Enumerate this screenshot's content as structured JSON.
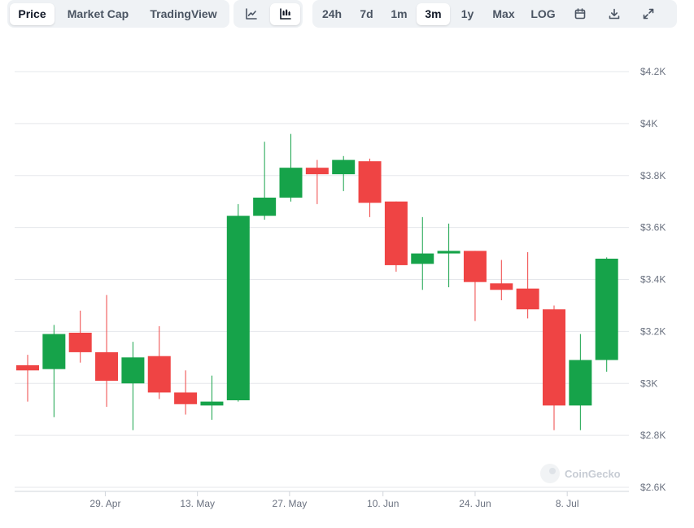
{
  "toolbar": {
    "metric_tabs": [
      {
        "label": "Price",
        "active": true
      },
      {
        "label": "Market Cap",
        "active": false
      },
      {
        "label": "TradingView",
        "active": false
      }
    ],
    "chart_type_buttons": [
      {
        "icon": "line-chart-icon",
        "active": false
      },
      {
        "icon": "candlestick-chart-icon",
        "active": true
      }
    ],
    "ranges": [
      {
        "label": "24h",
        "active": false
      },
      {
        "label": "7d",
        "active": false
      },
      {
        "label": "1m",
        "active": false
      },
      {
        "label": "3m",
        "active": true
      },
      {
        "label": "1y",
        "active": false
      },
      {
        "label": "Max",
        "active": false
      },
      {
        "label": "LOG",
        "active": false
      }
    ],
    "action_icons": [
      "calendar-icon",
      "download-icon",
      "expand-icon"
    ]
  },
  "watermark": "CoinGecko",
  "colors": {
    "up": "#16a34a",
    "down": "#ef4444",
    "grid": "#e5e7eb",
    "active_bg": "#ffffff",
    "group_bg": "#eff2f5"
  },
  "chart_data": {
    "type": "candlestick",
    "y_ticks": [
      {
        "value": 2600,
        "label": "$2.6K"
      },
      {
        "value": 2800,
        "label": "$2.8K"
      },
      {
        "value": 3000,
        "label": "$3K"
      },
      {
        "value": 3200,
        "label": "$3.2K"
      },
      {
        "value": 3400,
        "label": "$3.4K"
      },
      {
        "value": 3600,
        "label": "$3.6K"
      },
      {
        "value": 3800,
        "label": "$3.8K"
      },
      {
        "value": 4000,
        "label": "$4K"
      },
      {
        "value": 4200,
        "label": "$4.2K"
      }
    ],
    "x_ticks": [
      {
        "label": "29. Apr",
        "index": 2.95
      },
      {
        "label": "13. May",
        "index": 6.45
      },
      {
        "label": "27. May",
        "index": 9.95
      },
      {
        "label": "10. Jun",
        "index": 13.5
      },
      {
        "label": "24. Jun",
        "index": 17.0
      },
      {
        "label": "8. Jul",
        "index": 20.5
      }
    ],
    "ylim": [
      2600,
      4200
    ],
    "candles": [
      {
        "open": 3070,
        "high": 3110,
        "low": 2930,
        "close": 3050
      },
      {
        "open": 3055,
        "high": 3225,
        "low": 2870,
        "close": 3190
      },
      {
        "open": 3195,
        "high": 3280,
        "low": 3080,
        "close": 3120
      },
      {
        "open": 3120,
        "high": 3340,
        "low": 2910,
        "close": 3010
      },
      {
        "open": 3000,
        "high": 3160,
        "low": 2820,
        "close": 3100
      },
      {
        "open": 3105,
        "high": 3220,
        "low": 2940,
        "close": 2965
      },
      {
        "open": 2965,
        "high": 3050,
        "low": 2880,
        "close": 2920
      },
      {
        "open": 2915,
        "high": 3030,
        "low": 2860,
        "close": 2930
      },
      {
        "open": 2935,
        "high": 3690,
        "low": 2930,
        "close": 3645
      },
      {
        "open": 3645,
        "high": 3930,
        "low": 3630,
        "close": 3715
      },
      {
        "open": 3715,
        "high": 3960,
        "low": 3700,
        "close": 3830
      },
      {
        "open": 3830,
        "high": 3860,
        "low": 3690,
        "close": 3805
      },
      {
        "open": 3805,
        "high": 3875,
        "low": 3740,
        "close": 3860
      },
      {
        "open": 3855,
        "high": 3865,
        "low": 3640,
        "close": 3695
      },
      {
        "open": 3700,
        "high": 3700,
        "low": 3430,
        "close": 3455
      },
      {
        "open": 3460,
        "high": 3640,
        "low": 3360,
        "close": 3500
      },
      {
        "open": 3500,
        "high": 3615,
        "low": 3370,
        "close": 3510
      },
      {
        "open": 3510,
        "high": 3510,
        "low": 3240,
        "close": 3390
      },
      {
        "open": 3385,
        "high": 3475,
        "low": 3320,
        "close": 3360
      },
      {
        "open": 3365,
        "high": 3505,
        "low": 3250,
        "close": 3285
      },
      {
        "open": 3285,
        "high": 3300,
        "low": 2820,
        "close": 2915
      },
      {
        "open": 2915,
        "high": 3190,
        "low": 2820,
        "close": 3090
      },
      {
        "open": 3090,
        "high": 3485,
        "low": 3045,
        "close": 3480
      }
    ]
  }
}
